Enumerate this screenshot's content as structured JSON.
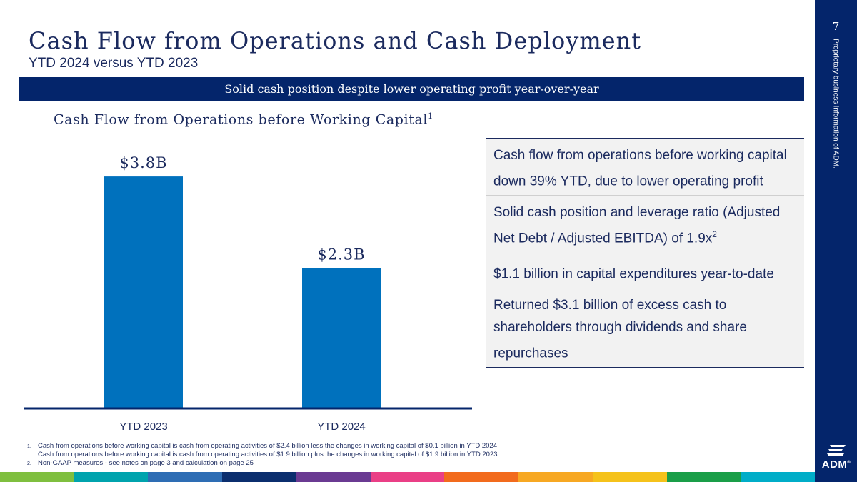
{
  "header": {
    "title": "Cash Flow from Operations and Cash Deployment",
    "subtitle": "YTD 2024 versus YTD 2023"
  },
  "banner": {
    "text": "Solid cash position despite lower operating profit year-over-year"
  },
  "chart_title": {
    "text": "Cash Flow from Operations before Working Capital",
    "sup": "1"
  },
  "chart_data": {
    "type": "bar",
    "title": "Cash Flow from Operations before Working Capital",
    "categories": [
      "YTD 2023",
      "YTD 2024"
    ],
    "values": [
      3.8,
      2.3
    ],
    "data_labels": [
      "$3.8B",
      "$2.3B"
    ],
    "unit": "$B",
    "ylim": [
      0,
      4.5
    ],
    "xlabel": "",
    "ylabel": "",
    "grid": false,
    "bar_color": "#0071bd"
  },
  "bullets": [
    {
      "text": "Cash flow from operations before working capital down 39% YTD, due to lower operating profit",
      "sup": ""
    },
    {
      "text": "Solid cash position and leverage ratio (Adjusted Net Debt / Adjusted EBITDA) of 1.9x",
      "sup": "2"
    },
    {
      "text": "$1.1 billion in capital expenditures year-to-date",
      "sup": ""
    },
    {
      "text": "Returned $3.1 billion of excess cash to shareholders through dividends and share repurchases",
      "sup": ""
    }
  ],
  "footnotes": [
    {
      "num": "1.",
      "line1": "Cash from operations before working capital is cash from operating activities of $2.4 billion less the changes in working capital of $0.1 billion in YTD 2024",
      "line2": "Cash from operations before working capital is cash from operating activities of $1.9 billion plus the changes in working capital of $1.9 billion in YTD 2023"
    },
    {
      "num": "2.",
      "line1": "Non-GAAP measures - see notes on page 3 and calculation on page 25",
      "line2": ""
    }
  ],
  "sidebar": {
    "page_number": "7",
    "label": "Proprietary business information of ADM.",
    "logo_text": "ADM",
    "logo_registered": "®"
  },
  "colors": {
    "navy": "#04256b",
    "bar": "#0071bd",
    "stripe": [
      "#7fbf3f",
      "#00a3ad",
      "#2e6db4",
      "#0b2e6e",
      "#6a3a92",
      "#ea3f86",
      "#f26b1d",
      "#f7a823",
      "#f5c21b",
      "#1a9e48",
      "#00adc8"
    ]
  }
}
